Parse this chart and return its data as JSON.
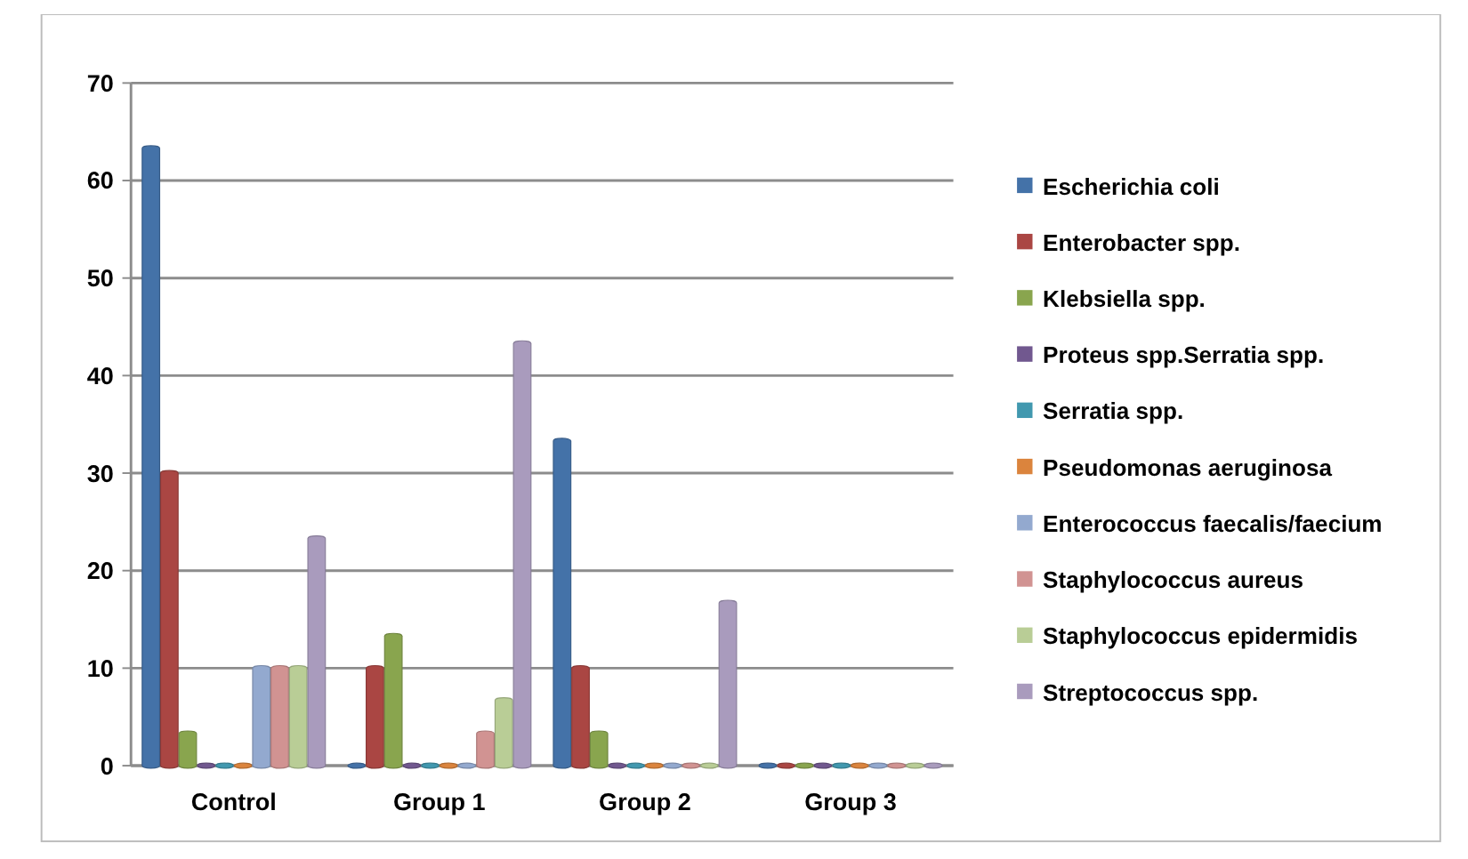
{
  "chart_data": {
    "type": "bar",
    "categories": [
      "Control",
      "Group 1",
      "Group 2",
      "Group 3"
    ],
    "series": [
      {
        "name": "Escherichia coli",
        "color": "#4472a8",
        "values": [
          63.3,
          0,
          33.3,
          0
        ]
      },
      {
        "name": "Enterobacter spp.",
        "color": "#aa4643",
        "values": [
          30,
          10,
          10,
          0
        ]
      },
      {
        "name": "Klebsiella spp.",
        "color": "#89a54e",
        "values": [
          3.3,
          13.3,
          3.3,
          0
        ]
      },
      {
        "name": "Proteus spp.Serratia spp.",
        "color": "#71588f",
        "values": [
          0,
          0,
          0,
          0
        ]
      },
      {
        "name": "Serratia spp.",
        "color": "#4198af",
        "values": [
          0,
          0,
          0,
          0
        ]
      },
      {
        "name": "Pseudomonas aeruginosa",
        "color": "#db843d",
        "values": [
          0,
          0,
          0,
          0
        ]
      },
      {
        "name": "Enterococcus faecalis/faecium",
        "color": "#93a9cf",
        "values": [
          10,
          0,
          0,
          0
        ]
      },
      {
        "name": "Staphylococcus aureus",
        "color": "#d19392",
        "values": [
          10,
          3.3,
          0,
          0
        ]
      },
      {
        "name": "Staphylococcus epidermidis",
        "color": "#b9cd96",
        "values": [
          10,
          6.7,
          0,
          0
        ]
      },
      {
        "name": "Streptococcus spp.",
        "color": "#a99bbd",
        "values": [
          23.3,
          43.3,
          16.7,
          0
        ]
      }
    ],
    "ylim": [
      0,
      70
    ],
    "yticks": [
      0,
      10,
      20,
      30,
      40,
      50,
      60,
      70
    ],
    "grid": "y",
    "legend": "right"
  }
}
